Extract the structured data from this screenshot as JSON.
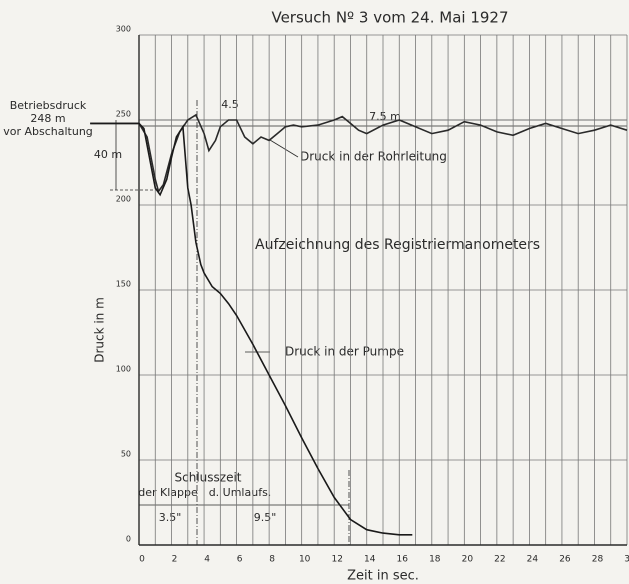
{
  "chart_data": {
    "type": "line",
    "title": "Versuch Nº 3 vom 24. Mai 1927",
    "xlabel": "Zeit in sec.",
    "ylabel": "Druck in m",
    "xlim": [
      0,
      30
    ],
    "ylim": [
      0,
      300
    ],
    "xticks": [
      0,
      2,
      4,
      6,
      8,
      10,
      12,
      14,
      16,
      18,
      20,
      22,
      24,
      26,
      28,
      30
    ],
    "xgrid": [
      1,
      3,
      5,
      7,
      9,
      11,
      13,
      15,
      17,
      19,
      21,
      23,
      25,
      27,
      29
    ],
    "yticks": [
      0,
      50,
      100,
      150,
      200,
      250,
      300
    ],
    "grid": true,
    "annotations": {
      "betrieb1": "Betriebsdruck",
      "betrieb2": "248 m",
      "betrieb3": "vor Abschaltung",
      "d40": "40 m",
      "d45": "4.5",
      "d75": "7.5 m",
      "rohr": "Druck in der Rohrleitung",
      "reg": "Aufzeichnung des Registriermanometers",
      "pumpe": "Druck in der Pumpe",
      "schluss": "Schlusszeit",
      "klappe": "der Klappe",
      "umlauf": "d. Umlaufs.",
      "t35": "3.5\"",
      "t95": "9.5\""
    },
    "series": [
      {
        "name": "Druck in der Rohrleitung",
        "color": "#2a2a2a",
        "x": [
          -3,
          0,
          0.5,
          1,
          1.2,
          1.5,
          2,
          2.5,
          3,
          3.5,
          4,
          4.3,
          4.7,
          5,
          5.5,
          6,
          6.5,
          7,
          7.5,
          8,
          8.5,
          9,
          9.5,
          10,
          11,
          12,
          12.5,
          13,
          13.5,
          14,
          15,
          16,
          17,
          18,
          19,
          20,
          21,
          22,
          23,
          24,
          25,
          26,
          27,
          28,
          29,
          30
        ],
        "values": [
          248,
          248,
          240,
          215,
          208,
          212,
          230,
          243,
          250,
          253,
          242,
          232,
          238,
          246,
          250,
          250,
          240,
          236,
          240,
          238,
          242,
          246,
          247,
          246,
          247,
          250,
          252,
          248,
          244,
          242,
          247,
          250,
          246,
          242,
          244,
          249,
          247,
          243,
          241,
          245,
          248,
          245,
          242,
          244,
          247,
          244
        ]
      },
      {
        "name": "Druck in der Pumpe",
        "color": "#1a1a1a",
        "x": [
          -3,
          0,
          0.3,
          0.7,
          1,
          1.3,
          1.7,
          2,
          2.3,
          2.7,
          3,
          3.2,
          3.5,
          3.8,
          4,
          4.5,
          5,
          5.5,
          6,
          7,
          8,
          9,
          10,
          11,
          12,
          13,
          14,
          15,
          16,
          16.8
        ],
        "values": [
          248,
          248,
          245,
          225,
          210,
          206,
          215,
          228,
          240,
          246,
          210,
          200,
          178,
          165,
          160,
          152,
          148,
          142,
          135,
          118,
          100,
          82,
          63,
          45,
          28,
          15,
          9,
          7,
          6,
          6
        ]
      }
    ]
  }
}
